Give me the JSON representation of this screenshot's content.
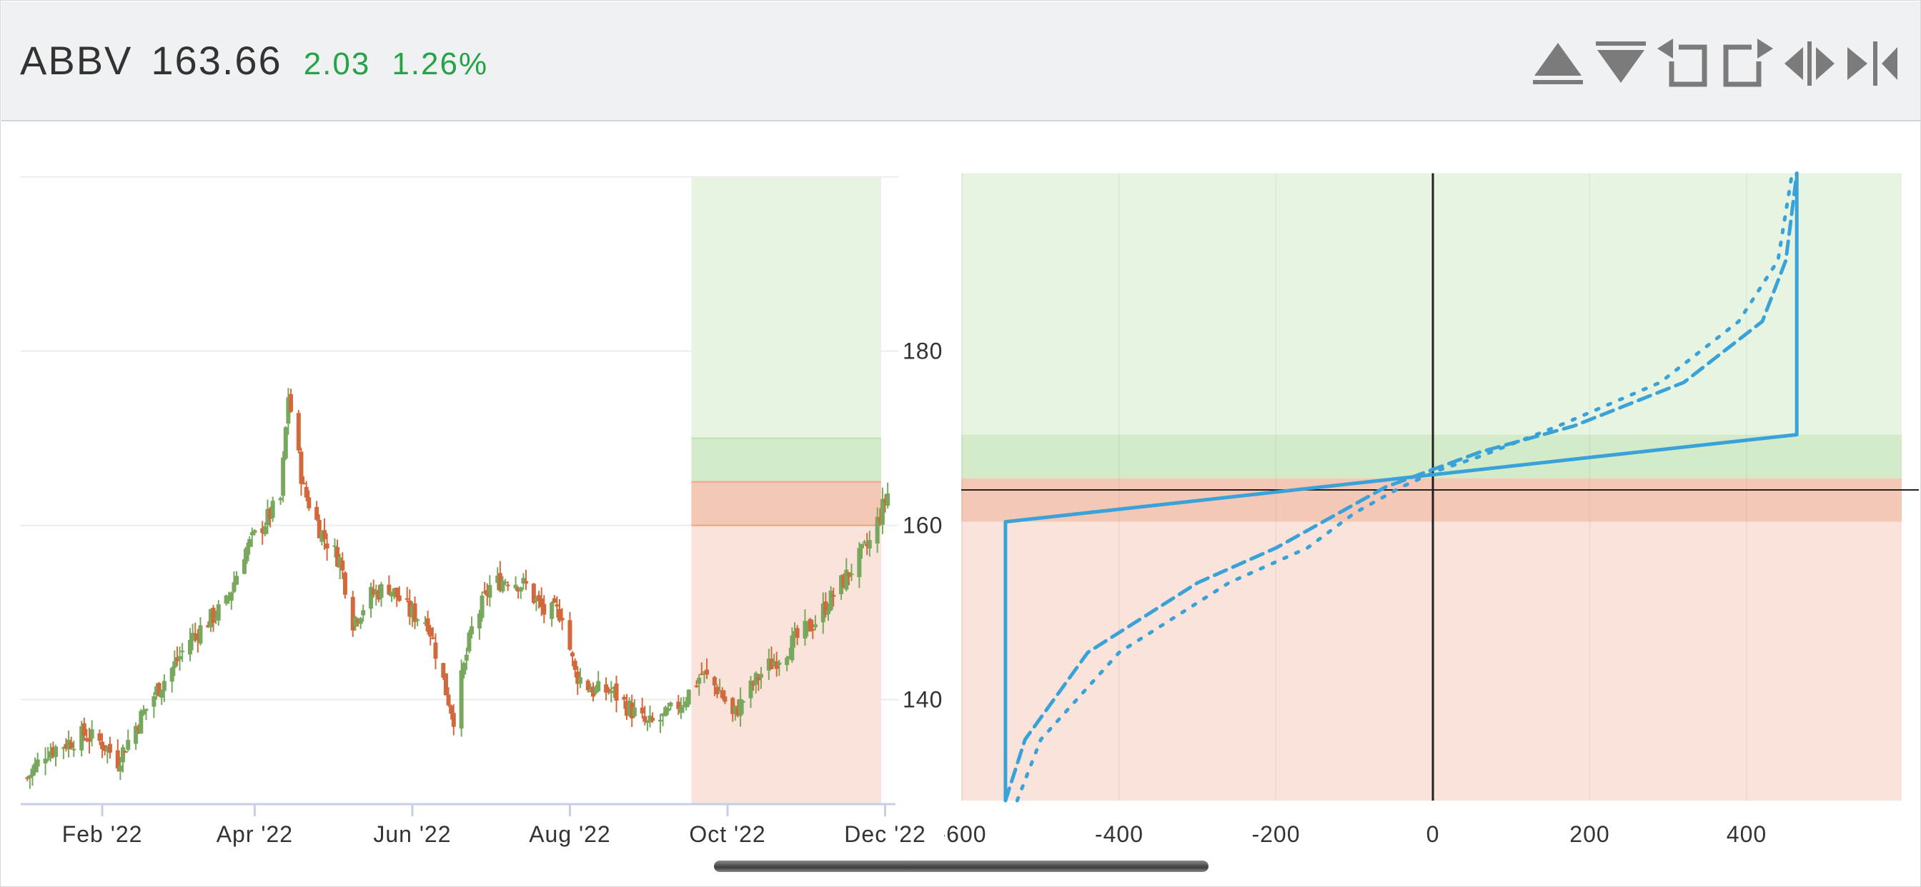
{
  "header": {
    "symbol": "ABBV",
    "price": "163.66",
    "change": "2.03",
    "change_pct": "1.26%",
    "change_color": "#22a447",
    "tools": [
      "triangle-up-icon",
      "triangle-down-icon",
      "expand-left-icon",
      "expand-right-icon",
      "split-horizontal-icon",
      "collapse-right-icon"
    ]
  },
  "colors": {
    "bull": "#77a85e",
    "bear": "#d2693c",
    "profit_zone": "#e8f4e2",
    "profit_band": "#d3ebc9",
    "loss_band": "#f5c8b6",
    "loss_zone": "#f9e3da",
    "payoff_line": "#39a2d8"
  },
  "chart_data": [
    {
      "type": "candlestick",
      "x_tick_labels": [
        "Feb '22",
        "Apr '22",
        "Jun '22",
        "Aug '22",
        "Oct '22",
        "Dec '22"
      ],
      "y_ticks": [
        140,
        160,
        180
      ],
      "ylim": [
        128,
        200
      ],
      "price_path": [
        [
          "2022-01-03",
          131
        ],
        [
          "2022-01-10",
          134
        ],
        [
          "2022-01-18",
          135
        ],
        [
          "2022-01-25",
          136
        ],
        [
          "2022-02-01",
          135
        ],
        [
          "2022-02-07",
          133
        ],
        [
          "2022-02-14",
          137
        ],
        [
          "2022-02-22",
          141
        ],
        [
          "2022-03-01",
          144
        ],
        [
          "2022-03-07",
          147
        ],
        [
          "2022-03-14",
          149
        ],
        [
          "2022-03-21",
          151
        ],
        [
          "2022-03-28",
          157
        ],
        [
          "2022-04-04",
          160
        ],
        [
          "2022-04-11",
          163
        ],
        [
          "2022-04-14",
          175
        ],
        [
          "2022-04-20",
          164
        ],
        [
          "2022-04-27",
          159
        ],
        [
          "2022-05-04",
          156
        ],
        [
          "2022-05-09",
          149
        ],
        [
          "2022-05-16",
          152
        ],
        [
          "2022-05-23",
          153
        ],
        [
          "2022-05-31",
          150
        ],
        [
          "2022-06-07",
          149
        ],
        [
          "2022-06-14",
          141
        ],
        [
          "2022-06-17",
          138
        ],
        [
          "2022-06-24",
          148
        ],
        [
          "2022-07-01",
          153
        ],
        [
          "2022-07-08",
          154
        ],
        [
          "2022-07-15",
          153
        ],
        [
          "2022-07-22",
          150
        ],
        [
          "2022-07-29",
          150
        ],
        [
          "2022-08-03",
          143
        ],
        [
          "2022-08-10",
          141
        ],
        [
          "2022-08-17",
          141
        ],
        [
          "2022-08-24",
          139
        ],
        [
          "2022-08-31",
          137
        ],
        [
          "2022-09-07",
          138
        ],
        [
          "2022-09-14",
          140
        ],
        [
          "2022-09-21",
          143
        ],
        [
          "2022-09-28",
          141
        ],
        [
          "2022-10-03",
          138
        ],
        [
          "2022-10-07",
          140
        ],
        [
          "2022-10-14",
          143
        ],
        [
          "2022-10-21",
          145
        ],
        [
          "2022-10-28",
          147
        ],
        [
          "2022-11-04",
          149
        ],
        [
          "2022-11-11",
          152
        ],
        [
          "2022-11-18",
          155
        ],
        [
          "2022-11-25",
          158
        ],
        [
          "2022-12-02",
          163.66
        ]
      ],
      "projection_start": "2022-09-17",
      "levels": {
        "band_top": 170,
        "break_even": 165,
        "lower_strike": 160
      }
    },
    {
      "type": "line",
      "x_ticks": [
        -600,
        -400,
        -200,
        0,
        200,
        400
      ],
      "xlim": [
        -600,
        600
      ],
      "ylim": [
        128,
        200
      ],
      "current_price": 163.66,
      "series": [
        {
          "style": "solid",
          "points": [
            [
              -545,
              128
            ],
            [
              -545,
              160
            ],
            [
              464,
              170
            ],
            [
              464,
              200
            ]
          ]
        },
        {
          "style": "dashed",
          "points": [
            [
              -545,
              128
            ],
            [
              -520,
              135
            ],
            [
              -440,
              145
            ],
            [
              -300,
              153
            ],
            [
              -200,
              157
            ],
            [
              -120,
              161
            ],
            [
              -60,
              164
            ],
            [
              0,
              166
            ],
            [
              60,
              168
            ],
            [
              180,
              171
            ],
            [
              320,
              176
            ],
            [
              420,
              183
            ],
            [
              450,
              190
            ],
            [
              464,
              200
            ]
          ]
        },
        {
          "style": "dotted",
          "points": [
            [
              -530,
              128
            ],
            [
              -500,
              135
            ],
            [
              -400,
              145
            ],
            [
              -260,
              153
            ],
            [
              -160,
              157
            ],
            [
              -100,
              161
            ],
            [
              -40,
              164
            ],
            [
              10,
              166
            ],
            [
              60,
              167.5
            ],
            [
              160,
              171
            ],
            [
              290,
              176
            ],
            [
              390,
              183
            ],
            [
              440,
              190
            ],
            [
              458,
              200
            ]
          ]
        }
      ]
    }
  ]
}
